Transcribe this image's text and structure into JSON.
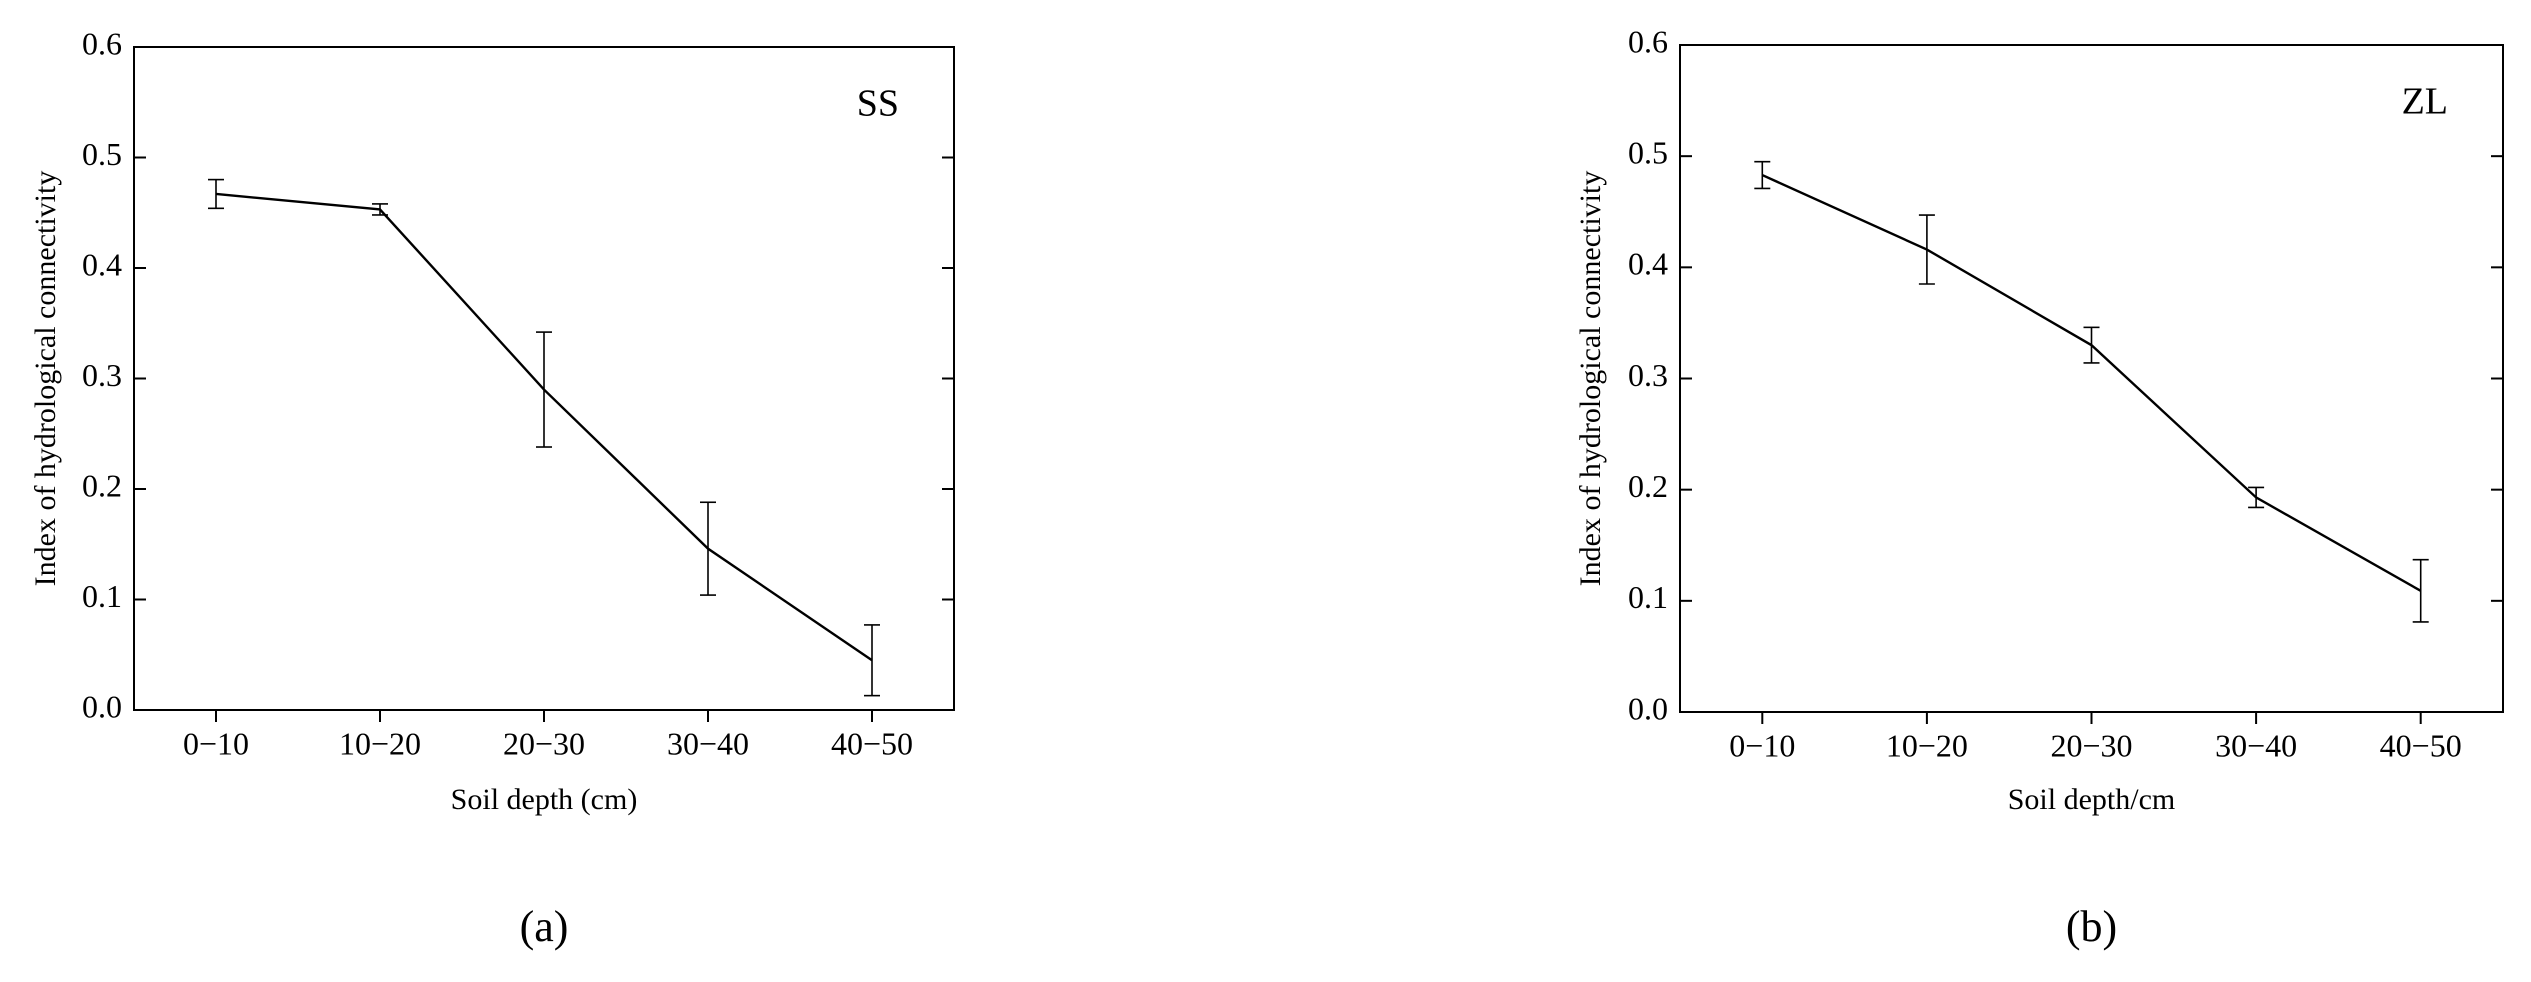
{
  "chart_data": [
    {
      "type": "line",
      "annotation": "SS",
      "caption": "(a)",
      "x_label": "Soil depth (cm)",
      "y_label": "Index of hydrological connectivity",
      "categories": [
        "0−10",
        "10−20",
        "20−30",
        "30−40",
        "40−50"
      ],
      "values": [
        0.467,
        0.453,
        0.29,
        0.146,
        0.045
      ],
      "errors": [
        0.013,
        0.005,
        0.052,
        0.042,
        0.032
      ],
      "color": "#000000",
      "ylim": [
        0,
        0.6
      ],
      "yticks": [
        {
          "value": 0,
          "label": "0.0"
        },
        0.1,
        0.2,
        0.3,
        0.4,
        0.5,
        0.6
      ]
    },
    {
      "type": "line",
      "annotation": "ZL",
      "caption": "(b)",
      "x_label": "Soil depth/cm",
      "y_label": "Index of hydrological connectivity",
      "categories": [
        "0−10",
        "10−20",
        "20−30",
        "30−40",
        "40−50"
      ],
      "values": [
        0.483,
        0.416,
        0.33,
        0.193,
        0.109
      ],
      "errors": [
        0.012,
        0.031,
        0.016,
        0.009,
        0.028
      ],
      "color": "#000000",
      "ylim": [
        0,
        0.6
      ],
      "yticks": [
        {
          "value": 0,
          "label": "0.0"
        },
        0.1,
        0.2,
        0.3,
        0.4,
        0.5,
        0.6
      ]
    }
  ]
}
